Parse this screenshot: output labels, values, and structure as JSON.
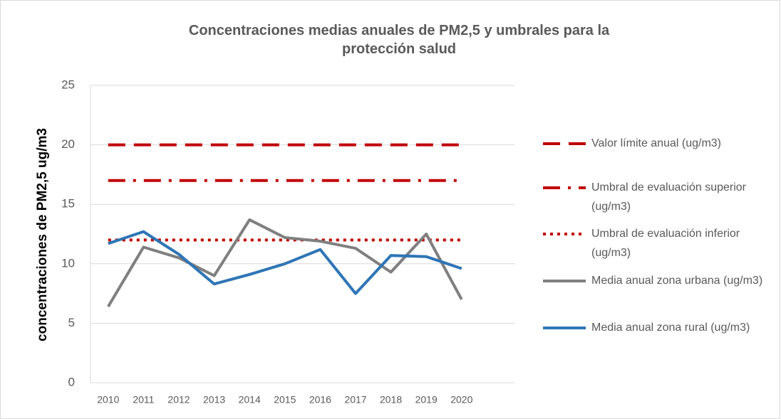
{
  "chart_data": {
    "type": "line",
    "title": "Concentraciones medias anuales de PM2,5 y umbrales para la protección salud",
    "y_label": "concentraciones de PM2,5 ug/m3",
    "categories": [
      "2010",
      "2011",
      "2012",
      "2013",
      "2014",
      "2015",
      "2016",
      "2017",
      "2018",
      "2019",
      "2020"
    ],
    "series": [
      {
        "name": "Valor límite anual (ug/m3)",
        "color": "#c00000",
        "dash": "dashed",
        "values": [
          20,
          20,
          20,
          20,
          20,
          20,
          20,
          20,
          20,
          20,
          20
        ]
      },
      {
        "name": "Umbral de evaluación superior (ug/m3)",
        "color": "#c00000",
        "dash": "dashdot",
        "values": [
          17,
          17,
          17,
          17,
          17,
          17,
          17,
          17,
          17,
          17,
          17
        ]
      },
      {
        "name": "Umbral de evaluación inferior (ug/m3)",
        "color": "#c00000",
        "dash": "dotted",
        "values": [
          12,
          12,
          12,
          12,
          12,
          12,
          12,
          12,
          12,
          12,
          12
        ]
      },
      {
        "name": "Media anual zona urbana (ug/m3)",
        "color": "#7f7f7f",
        "dash": "solid",
        "values": [
          6.4,
          11.4,
          10.5,
          9.0,
          13.7,
          12.2,
          11.9,
          11.3,
          9.3,
          12.5,
          7.0
        ]
      },
      {
        "name": "Media anual zona rural (ug/m3)",
        "color": "#2e75b6",
        "dash": "solid",
        "values": [
          11.7,
          12.7,
          10.8,
          8.3,
          9.1,
          10.0,
          11.2,
          7.5,
          10.7,
          10.6,
          9.6
        ]
      }
    ],
    "ylim": [
      0,
      25
    ],
    "yticks": [
      0,
      5,
      10,
      15,
      20,
      25
    ],
    "grid": true,
    "legend": "right"
  }
}
